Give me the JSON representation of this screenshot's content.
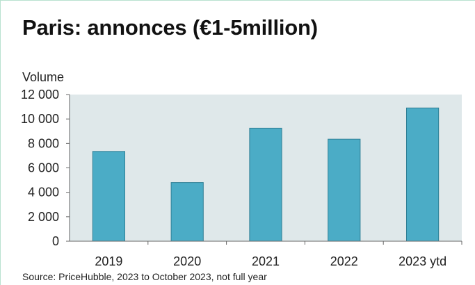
{
  "chart_data": {
    "type": "bar",
    "title": "Paris: annonces (€1-5million)",
    "ylabel": "Volume",
    "xlabel": "",
    "categories": [
      "2019",
      "2020",
      "2021",
      "2022",
      "2023 ytd"
    ],
    "values": [
      7350,
      4800,
      9250,
      8350,
      10900
    ],
    "ylim": [
      0,
      12000
    ],
    "yticks": [
      0,
      2000,
      4000,
      6000,
      8000,
      10000,
      12000
    ],
    "ytick_labels": [
      "0",
      "2 000",
      "4 000",
      "6 000",
      "8 000",
      "10 000",
      "12 000"
    ],
    "grid": false,
    "legend": "none",
    "source": "Source: PriceHubble, 2023 to October 2023, not full year",
    "colors": {
      "bar": "#4bacc6",
      "bar_edge": "#2f7f95",
      "plot_bg": "#dfe8ea",
      "frame_border": "#b9e1cf",
      "axis": "#666666"
    }
  }
}
